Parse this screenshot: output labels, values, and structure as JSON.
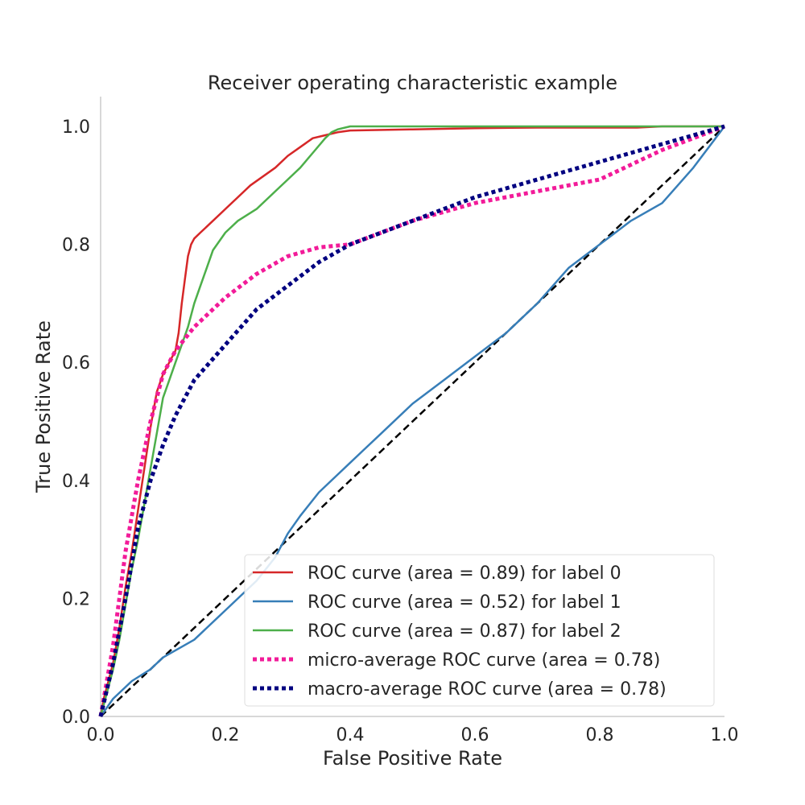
{
  "chart_data": {
    "type": "line",
    "title": "Receiver operating characteristic example",
    "xlabel": "False Positive Rate",
    "ylabel": "True Positive Rate",
    "xlim": [
      0.0,
      1.0
    ],
    "ylim": [
      0.0,
      1.05
    ],
    "xticks": [
      0.0,
      0.2,
      0.4,
      0.6,
      0.8,
      1.0
    ],
    "yticks": [
      0.0,
      0.2,
      0.4,
      0.6,
      0.8,
      1.0
    ],
    "xtick_labels": [
      "0.0",
      "0.2",
      "0.4",
      "0.6",
      "0.8",
      "1.0"
    ],
    "ytick_labels": [
      "0.0",
      "0.2",
      "0.4",
      "0.6",
      "0.8",
      "1.0"
    ],
    "grid": false,
    "legend_position": "lower-right",
    "series": [
      {
        "name": "ROC curve (area = 0.89) for label 0",
        "color": "#d62728",
        "style": "solid",
        "x": [
          0.0,
          0.005,
          0.01,
          0.02,
          0.03,
          0.04,
          0.05,
          0.06,
          0.07,
          0.08,
          0.09,
          0.1,
          0.11,
          0.12,
          0.125,
          0.13,
          0.135,
          0.14,
          0.145,
          0.15,
          0.16,
          0.17,
          0.18,
          0.2,
          0.22,
          0.24,
          0.26,
          0.28,
          0.3,
          0.32,
          0.34,
          0.36,
          0.38,
          0.4,
          0.5,
          0.6,
          0.7,
          0.8,
          0.86,
          0.9,
          1.0
        ],
        "y": [
          0.0,
          0.03,
          0.05,
          0.09,
          0.15,
          0.22,
          0.28,
          0.35,
          0.42,
          0.49,
          0.55,
          0.58,
          0.6,
          0.62,
          0.65,
          0.7,
          0.74,
          0.78,
          0.8,
          0.81,
          0.82,
          0.83,
          0.84,
          0.86,
          0.88,
          0.9,
          0.915,
          0.93,
          0.95,
          0.965,
          0.98,
          0.985,
          0.99,
          0.993,
          0.995,
          0.997,
          0.998,
          0.998,
          0.998,
          1.0,
          1.0
        ]
      },
      {
        "name": "ROC curve (area = 0.52) for label 1",
        "color": "#377eb8",
        "style": "solid",
        "x": [
          0.0,
          0.02,
          0.05,
          0.08,
          0.1,
          0.15,
          0.2,
          0.25,
          0.28,
          0.3,
          0.32,
          0.35,
          0.38,
          0.4,
          0.42,
          0.45,
          0.5,
          0.55,
          0.6,
          0.65,
          0.7,
          0.75,
          0.8,
          0.85,
          0.9,
          0.95,
          1.0
        ],
        "y": [
          0.0,
          0.03,
          0.06,
          0.08,
          0.1,
          0.13,
          0.18,
          0.23,
          0.27,
          0.31,
          0.34,
          0.38,
          0.41,
          0.43,
          0.45,
          0.48,
          0.53,
          0.57,
          0.61,
          0.65,
          0.7,
          0.76,
          0.8,
          0.84,
          0.87,
          0.93,
          1.0
        ]
      },
      {
        "name": "ROC curve (area = 0.87) for label 2",
        "color": "#4daf4a",
        "style": "solid",
        "x": [
          0.0,
          0.01,
          0.02,
          0.03,
          0.04,
          0.05,
          0.06,
          0.07,
          0.08,
          0.09,
          0.1,
          0.11,
          0.12,
          0.13,
          0.14,
          0.15,
          0.16,
          0.17,
          0.18,
          0.2,
          0.22,
          0.25,
          0.28,
          0.3,
          0.32,
          0.34,
          0.36,
          0.37,
          0.38,
          0.4,
          0.5,
          0.6,
          0.8,
          1.0
        ],
        "y": [
          0.0,
          0.04,
          0.08,
          0.13,
          0.19,
          0.25,
          0.3,
          0.36,
          0.42,
          0.48,
          0.54,
          0.57,
          0.6,
          0.63,
          0.66,
          0.7,
          0.73,
          0.76,
          0.79,
          0.82,
          0.84,
          0.86,
          0.89,
          0.91,
          0.93,
          0.955,
          0.98,
          0.99,
          0.995,
          1.0,
          1.0,
          1.0,
          1.0,
          1.0
        ]
      },
      {
        "name": "micro-average ROC curve (area = 0.78)",
        "color": "#f21b99",
        "style": "dotted",
        "x": [
          0.0,
          0.02,
          0.04,
          0.06,
          0.08,
          0.1,
          0.12,
          0.15,
          0.2,
          0.25,
          0.3,
          0.35,
          0.4,
          0.5,
          0.6,
          0.7,
          0.8,
          0.85,
          0.9,
          0.95,
          1.0
        ],
        "y": [
          0.0,
          0.12,
          0.28,
          0.4,
          0.5,
          0.58,
          0.62,
          0.66,
          0.71,
          0.75,
          0.78,
          0.795,
          0.8,
          0.84,
          0.87,
          0.89,
          0.91,
          0.935,
          0.96,
          0.98,
          1.0
        ]
      },
      {
        "name": "macro-average ROC curve (area = 0.78)",
        "color": "#000080",
        "style": "dotted",
        "x": [
          0.0,
          0.02,
          0.04,
          0.06,
          0.08,
          0.1,
          0.12,
          0.15,
          0.2,
          0.25,
          0.3,
          0.35,
          0.4,
          0.45,
          0.5,
          0.6,
          0.7,
          0.8,
          0.9,
          0.95,
          1.0
        ],
        "y": [
          0.0,
          0.09,
          0.2,
          0.32,
          0.4,
          0.46,
          0.51,
          0.57,
          0.63,
          0.69,
          0.73,
          0.77,
          0.8,
          0.82,
          0.84,
          0.88,
          0.91,
          0.94,
          0.97,
          0.985,
          1.0
        ]
      },
      {
        "name": "",
        "color": "#000000",
        "style": "dashed",
        "x": [
          0.0,
          1.0
        ],
        "y": [
          0.0,
          1.0
        ]
      }
    ],
    "legend": [
      "ROC curve (area = 0.89) for label 0",
      "ROC curve (area = 0.52) for label 1",
      "ROC curve (area = 0.87) for label 2",
      "micro-average ROC curve (area = 0.78)",
      "macro-average ROC curve (area = 0.78)"
    ]
  }
}
